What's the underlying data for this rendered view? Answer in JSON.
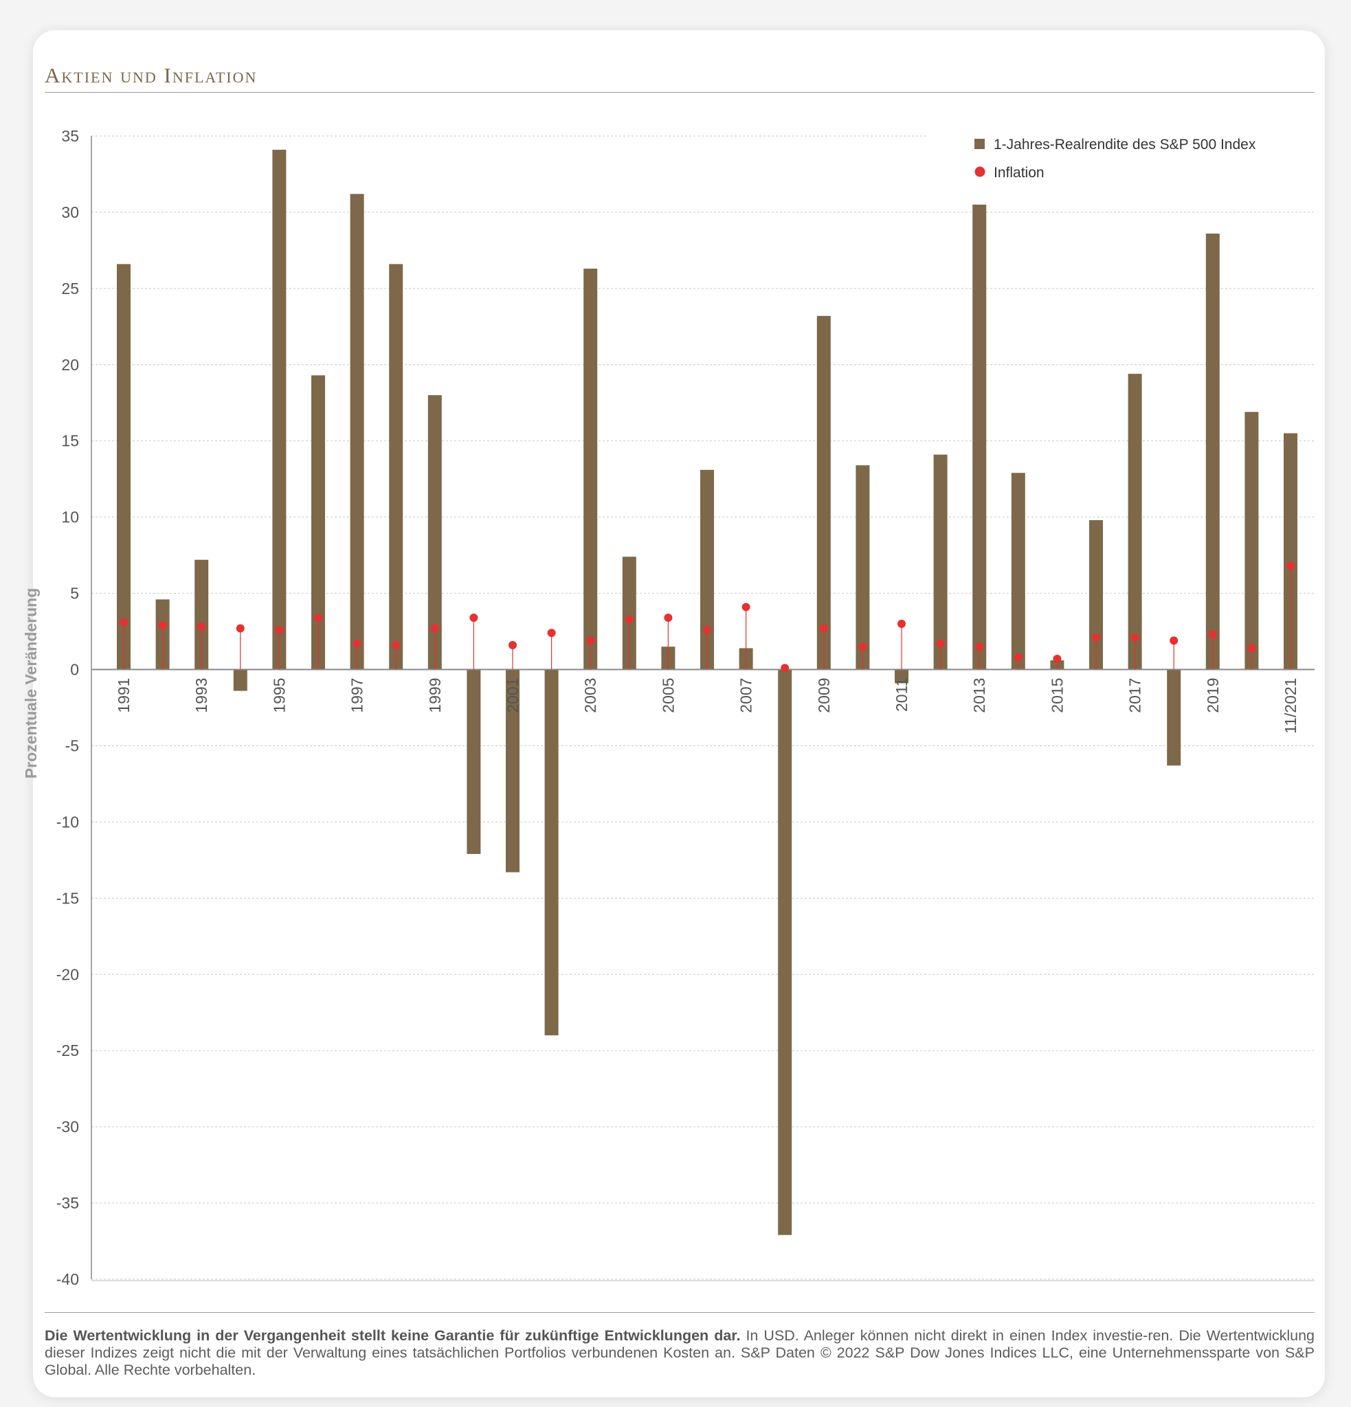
{
  "header": {
    "title": "Aktien und Inflation"
  },
  "colors": {
    "bar": "#7d6849",
    "inflation": "#e53131",
    "grid": "#c8c8c8",
    "axis": "#888888",
    "text": "#555555"
  },
  "chart_data": {
    "type": "bar",
    "ylabel": "Prozentuale Veränderung",
    "xlabel": "",
    "ylim": [
      -40,
      35
    ],
    "yticks": [
      35,
      30,
      25,
      20,
      15,
      10,
      5,
      0,
      -5,
      -10,
      -15,
      -20,
      -25,
      -30,
      -35,
      -40
    ],
    "grid": true,
    "legend_position": "top-right",
    "categories": [
      "1991",
      "1992",
      "1993",
      "1994",
      "1995",
      "1996",
      "1997",
      "1998",
      "1999",
      "2000",
      "2001",
      "2002",
      "2003",
      "2004",
      "2005",
      "2006",
      "2007",
      "2008",
      "2009",
      "2010",
      "2011",
      "2012",
      "2013",
      "2014",
      "2015",
      "2016",
      "2017",
      "2018",
      "2019",
      "2020",
      "11/2021"
    ],
    "tick_labels": [
      "1991",
      "",
      "1993",
      "",
      "1995",
      "",
      "1997",
      "",
      "1999",
      "",
      "2001",
      "",
      "2003",
      "",
      "2005",
      "",
      "2007",
      "",
      "2009",
      "",
      "2011",
      "",
      "2013",
      "",
      "2015",
      "",
      "2017",
      "",
      "2019",
      "",
      "11/2021"
    ],
    "series": [
      {
        "name": "1-Jahres-Realrendite des S&P 500 Index",
        "kind": "bar",
        "values": [
          26.6,
          4.6,
          7.2,
          -1.4,
          34.1,
          19.3,
          31.2,
          26.6,
          18.0,
          -12.1,
          -13.3,
          -24.0,
          26.3,
          7.4,
          1.5,
          13.1,
          1.4,
          -37.1,
          23.2,
          13.4,
          -0.9,
          14.1,
          30.5,
          12.9,
          0.6,
          9.8,
          19.4,
          -6.3,
          28.6,
          16.9,
          15.5
        ]
      },
      {
        "name": "Inflation",
        "kind": "lollipop",
        "values": [
          3.1,
          2.9,
          2.8,
          2.7,
          2.6,
          3.4,
          1.7,
          1.6,
          2.7,
          3.4,
          1.6,
          2.4,
          1.9,
          3.3,
          3.4,
          2.6,
          4.1,
          0.1,
          2.7,
          1.5,
          3.0,
          1.7,
          1.5,
          0.8,
          0.7,
          2.1,
          2.1,
          1.9,
          2.3,
          1.4,
          6.8
        ]
      }
    ]
  },
  "footnote": {
    "bold": "Die Wertentwicklung in der Vergangenheit stellt keine Garantie für zukünftige Entwicklungen dar.",
    "text": " In USD. Anleger können nicht direkt in einen Index investie-ren. Die Wertentwicklung dieser Indizes zeigt nicht die mit der Verwaltung eines tatsächlichen Portfolios verbundenen Kosten an. S&P Daten © 2022 S&P Dow Jones Indices LLC, eine Unternehmenssparte von S&P Global. Alle Rechte vorbehalten."
  }
}
